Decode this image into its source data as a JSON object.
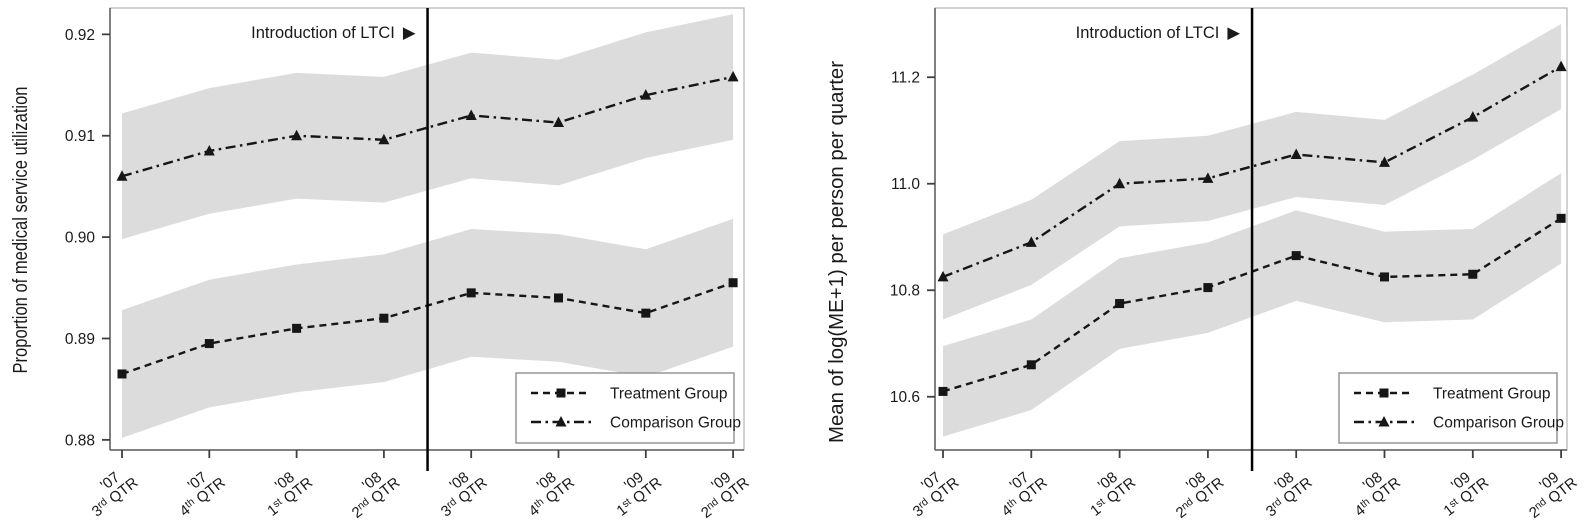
{
  "figure": {
    "annotation": {
      "text": "Introduction of LTCI",
      "arrow": "▶"
    },
    "legend": {
      "items": [
        "Treatment Group",
        "Comparison Group"
      ],
      "position": "lower right"
    }
  },
  "colors": {
    "line": "#161616",
    "band": "#dcdcdc",
    "frame": "#b3b3b3",
    "axis": "#5a5a5a",
    "tick": "#3f3f3f",
    "vline": "#000000",
    "legend_border": "#8f8f8f",
    "background": "#ffffff"
  },
  "chart_data": [
    {
      "type": "line",
      "title": "",
      "xlabel": "",
      "ylabel": "Proportion of medical service utilization",
      "categories": [
        "'07 3rd QTR",
        "'07 4th QTR",
        "'08 1st QTR",
        "'08 2nd QTR",
        "'08 3rd QTR",
        "'08 4th QTR",
        "'09 1st QTR",
        "'09 2nd QTR"
      ],
      "categories_parts": [
        {
          "year": "'07",
          "num": "3",
          "suffix": "rd",
          "unit": "QTR"
        },
        {
          "year": "'07",
          "num": "4",
          "suffix": "th",
          "unit": "QTR"
        },
        {
          "year": "'08",
          "num": "1",
          "suffix": "st",
          "unit": "QTR"
        },
        {
          "year": "'08",
          "num": "2",
          "suffix": "nd",
          "unit": "QTR"
        },
        {
          "year": "'08",
          "num": "3",
          "suffix": "rd",
          "unit": "QTR"
        },
        {
          "year": "'08",
          "num": "4",
          "suffix": "th",
          "unit": "QTR"
        },
        {
          "year": "'09",
          "num": "1",
          "suffix": "st",
          "unit": "QTR"
        },
        {
          "year": "'09",
          "num": "2",
          "suffix": "nd",
          "unit": "QTR"
        }
      ],
      "y_ticks": [
        0.88,
        0.89,
        0.9,
        0.91,
        0.92
      ],
      "y_tick_labels": [
        "0.88",
        "0.89",
        "0.90",
        "0.91",
        "0.92"
      ],
      "ylim": [
        0.879,
        0.9226
      ],
      "grid": false,
      "vline_x_index": 3.5,
      "vline_between": [
        "'08 2nd QTR",
        "'08 3rd QTR"
      ],
      "annotation": "Introduction of LTCI",
      "legend_position": "lower right",
      "series": [
        {
          "name": "Treatment Group",
          "marker": "square",
          "linestyle": "dashed",
          "values": [
            0.8865,
            0.8895,
            0.891,
            0.892,
            0.8945,
            0.894,
            0.8925,
            0.8955
          ],
          "ci_upper": [
            0.8928,
            0.8958,
            0.8973,
            0.8983,
            0.9008,
            0.9003,
            0.8988,
            0.9018
          ],
          "ci_lower": [
            0.8802,
            0.8832,
            0.8847,
            0.8857,
            0.8882,
            0.8877,
            0.8862,
            0.8892
          ]
        },
        {
          "name": "Comparison Group",
          "marker": "triangle",
          "linestyle": "dashdot",
          "values": [
            0.906,
            0.9085,
            0.91,
            0.9096,
            0.912,
            0.9113,
            0.914,
            0.9158
          ],
          "ci_upper": [
            0.9122,
            0.9147,
            0.9162,
            0.9158,
            0.9182,
            0.9175,
            0.9202,
            0.922
          ],
          "ci_lower": [
            0.8998,
            0.9023,
            0.9038,
            0.9034,
            0.9058,
            0.9051,
            0.9078,
            0.9096
          ]
        }
      ]
    },
    {
      "type": "line",
      "title": "",
      "xlabel": "",
      "ylabel": "Mean of log(ME+1) per person per quarter",
      "categories": [
        "'07 3rd QTR",
        "'07 4th QTR",
        "'08 1st QTR",
        "'08 2nd QTR",
        "'08 3rd QTR",
        "'08 4th QTR",
        "'09 1st QTR",
        "'09 2nd QTR"
      ],
      "categories_parts": [
        {
          "year": "'07",
          "num": "3",
          "suffix": "rd",
          "unit": "QTR"
        },
        {
          "year": "'07",
          "num": "4",
          "suffix": "th",
          "unit": "QTR"
        },
        {
          "year": "'08",
          "num": "1",
          "suffix": "st",
          "unit": "QTR"
        },
        {
          "year": "'08",
          "num": "2",
          "suffix": "nd",
          "unit": "QTR"
        },
        {
          "year": "'08",
          "num": "3",
          "suffix": "rd",
          "unit": "QTR"
        },
        {
          "year": "'08",
          "num": "4",
          "suffix": "th",
          "unit": "QTR"
        },
        {
          "year": "'09",
          "num": "1",
          "suffix": "st",
          "unit": "QTR"
        },
        {
          "year": "'09",
          "num": "2",
          "suffix": "nd",
          "unit": "QTR"
        }
      ],
      "y_ticks": [
        10.6,
        10.8,
        11.0,
        11.2
      ],
      "y_tick_labels": [
        "10.6",
        "10.8",
        "11.0",
        "11.2"
      ],
      "ylim": [
        10.5,
        11.33
      ],
      "grid": false,
      "vline_x_index": 3.5,
      "vline_between": [
        "'08 2nd QTR",
        "'08 3rd QTR"
      ],
      "annotation": "Introduction of LTCI",
      "legend_position": "lower right",
      "series": [
        {
          "name": "Treatment Group",
          "marker": "square",
          "linestyle": "dashed",
          "values": [
            10.61,
            10.66,
            10.775,
            10.805,
            10.865,
            10.825,
            10.83,
            10.935
          ],
          "ci_upper": [
            10.695,
            10.745,
            10.86,
            10.89,
            10.95,
            10.91,
            10.915,
            11.02
          ],
          "ci_lower": [
            10.525,
            10.575,
            10.69,
            10.72,
            10.78,
            10.74,
            10.745,
            10.85
          ]
        },
        {
          "name": "Comparison Group",
          "marker": "triangle",
          "linestyle": "dashdot",
          "values": [
            10.825,
            10.89,
            11.0,
            11.01,
            11.055,
            11.04,
            11.125,
            11.22
          ],
          "ci_upper": [
            10.905,
            10.97,
            11.08,
            11.09,
            11.135,
            11.12,
            11.205,
            11.3
          ],
          "ci_lower": [
            10.745,
            10.81,
            10.92,
            10.93,
            10.975,
            10.96,
            11.045,
            11.14
          ]
        }
      ]
    }
  ]
}
